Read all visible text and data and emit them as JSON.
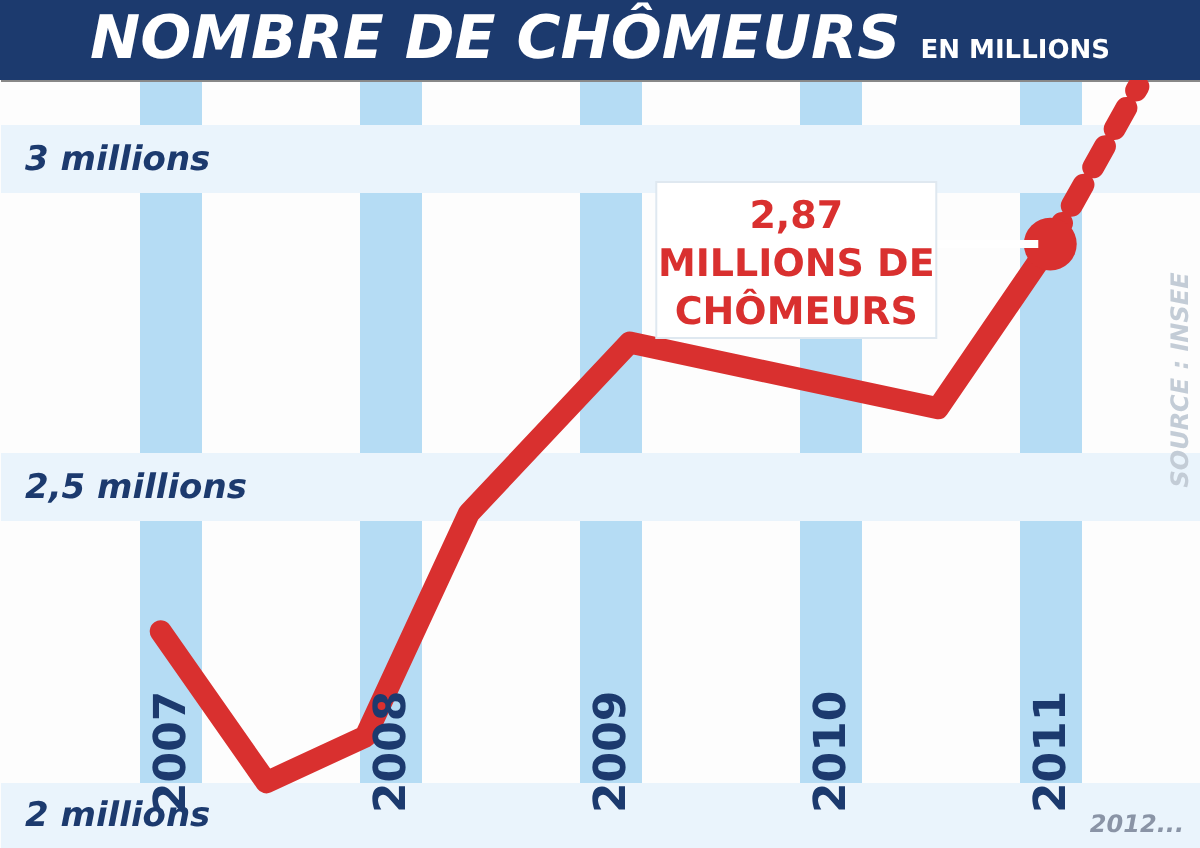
{
  "chart_data": {
    "type": "line",
    "title": "NOMBRE DE CHÔMEURS",
    "subtitle": "EN MILLIONS",
    "x": [
      2006.96,
      2007.44,
      2007.89,
      2008.36,
      2009.09,
      2010.49,
      2011.0
    ],
    "series": [
      {
        "color": "#d9302f",
        "values": [
          2.28,
          2.05,
          2.12,
          2.46,
          2.72,
          2.62,
          2.87
        ]
      },
      {
        "color": "#d9302f",
        "x": [
          2011.0,
          2011.4
        ],
        "values": [
          2.87,
          3.11
        ],
        "line_style": "dashed"
      }
    ],
    "xlim": [
      2006.23,
      2011.68
    ],
    "xticks": [
      2007,
      2008,
      2009,
      2010,
      2011
    ],
    "ylim": [
      1.95,
      3.12
    ],
    "yticks": [
      {
        "value": 2,
        "label": "2 millions"
      },
      {
        "value": 2.5,
        "label": "2,5 millions"
      },
      {
        "value": 3,
        "label": "3 millions"
      }
    ],
    "grid": true,
    "line_style": "solid",
    "annotations": [
      {
        "text": "2,87\nMILLIONS DE\nCHÔMEURS",
        "x": 2011.0,
        "y": 2.87
      },
      "SOURCE : INSEE",
      "2012..."
    ]
  }
}
